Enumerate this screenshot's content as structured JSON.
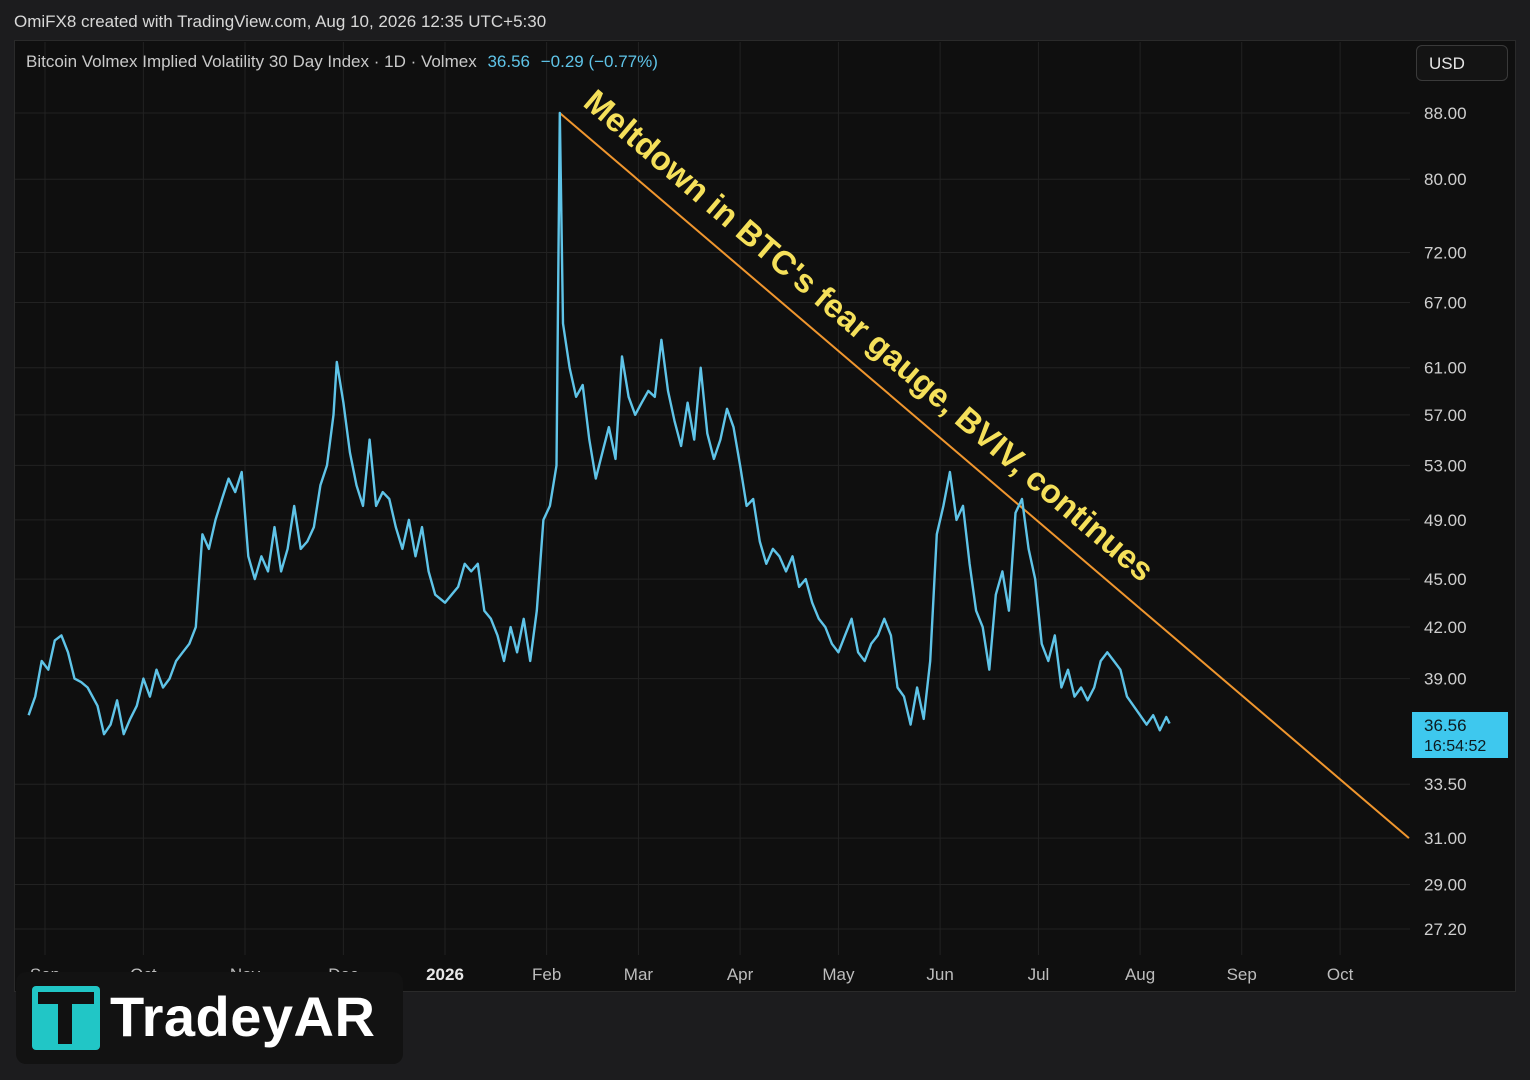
{
  "header": {
    "credit": "OmiFX8 created with TradingView.com, Aug 10, 2026 12:35 UTC+5:30"
  },
  "legend": {
    "symbol": "Bitcoin Volmex Implied Volatility 30 Day Index · 1D · Volmex",
    "last": "36.56",
    "change": "−0.29 (−0.77%)"
  },
  "currency_label": "USD",
  "price_tag": {
    "value": "36.56",
    "countdown": "16:54:52"
  },
  "logo": {
    "text": "TradeyAR"
  },
  "colors": {
    "line": "#5fc4e8",
    "trendline": "#f0962e",
    "annotation": "#f5e05a",
    "background": "#0f0f0f"
  },
  "chart_data": {
    "type": "line",
    "y_scale": "log",
    "annotation": "Meltdown in BTC's fear gauge, BVIV, continues",
    "y_ticks": [
      "88.00",
      "80.00",
      "72.00",
      "67.00",
      "61.00",
      "57.00",
      "53.00",
      "49.00",
      "45.00",
      "42.00",
      "39.00",
      "33.50",
      "31.00",
      "29.00",
      "27.20"
    ],
    "x_ticks": [
      {
        "label": "Sep",
        "date": "2025-09-01"
      },
      {
        "label": "Oct",
        "date": "2025-10-01"
      },
      {
        "label": "Nov",
        "date": "2025-11-01"
      },
      {
        "label": "Dec",
        "date": "2025-12-01"
      },
      {
        "label": "2026",
        "date": "2026-01-01",
        "bold": true
      },
      {
        "label": "Feb",
        "date": "2026-02-01"
      },
      {
        "label": "Mar",
        "date": "2026-03-01"
      },
      {
        "label": "Apr",
        "date": "2026-04-01"
      },
      {
        "label": "May",
        "date": "2026-05-01"
      },
      {
        "label": "Jun",
        "date": "2026-06-01"
      },
      {
        "label": "Jul",
        "date": "2026-07-01"
      },
      {
        "label": "Aug",
        "date": "2026-08-01"
      },
      {
        "label": "Sep",
        "date": "2026-09-01"
      },
      {
        "label": "Oct",
        "date": "2026-10-01"
      }
    ],
    "series": [
      {
        "values": [
          [
            "2025-08-27",
            37.0
          ],
          [
            "2025-08-29",
            38.0
          ],
          [
            "2025-08-31",
            40.0
          ],
          [
            "2025-09-02",
            39.5
          ],
          [
            "2025-09-04",
            41.2
          ],
          [
            "2025-09-06",
            41.5
          ],
          [
            "2025-09-08",
            40.5
          ],
          [
            "2025-09-10",
            39.0
          ],
          [
            "2025-09-12",
            38.8
          ],
          [
            "2025-09-14",
            38.5
          ],
          [
            "2025-09-17",
            37.5
          ],
          [
            "2025-09-19",
            36.0
          ],
          [
            "2025-09-21",
            36.5
          ],
          [
            "2025-09-23",
            37.8
          ],
          [
            "2025-09-25",
            36.0
          ],
          [
            "2025-09-27",
            36.8
          ],
          [
            "2025-09-29",
            37.5
          ],
          [
            "2025-10-01",
            39.0
          ],
          [
            "2025-10-03",
            38.0
          ],
          [
            "2025-10-05",
            39.5
          ],
          [
            "2025-10-07",
            38.5
          ],
          [
            "2025-10-09",
            39.0
          ],
          [
            "2025-10-11",
            40.0
          ],
          [
            "2025-10-13",
            40.5
          ],
          [
            "2025-10-15",
            41.0
          ],
          [
            "2025-10-17",
            42.0
          ],
          [
            "2025-10-19",
            48.0
          ],
          [
            "2025-10-21",
            47.0
          ],
          [
            "2025-10-23",
            49.0
          ],
          [
            "2025-10-25",
            50.5
          ],
          [
            "2025-10-27",
            52.0
          ],
          [
            "2025-10-29",
            51.0
          ],
          [
            "2025-10-31",
            52.5
          ],
          [
            "2025-11-02",
            46.5
          ],
          [
            "2025-11-04",
            45.0
          ],
          [
            "2025-11-06",
            46.5
          ],
          [
            "2025-11-08",
            45.5
          ],
          [
            "2025-11-10",
            48.5
          ],
          [
            "2025-11-12",
            45.5
          ],
          [
            "2025-11-14",
            47.0
          ],
          [
            "2025-11-16",
            50.0
          ],
          [
            "2025-11-18",
            47.0
          ],
          [
            "2025-11-20",
            47.5
          ],
          [
            "2025-11-22",
            48.5
          ],
          [
            "2025-11-24",
            51.5
          ],
          [
            "2025-11-26",
            53.0
          ],
          [
            "2025-11-28",
            57.0
          ],
          [
            "2025-11-29",
            61.5
          ],
          [
            "2025-12-01",
            58.0
          ],
          [
            "2025-12-03",
            54.0
          ],
          [
            "2025-12-05",
            51.5
          ],
          [
            "2025-12-07",
            50.0
          ],
          [
            "2025-12-09",
            55.0
          ],
          [
            "2025-12-11",
            50.0
          ],
          [
            "2025-12-13",
            51.0
          ],
          [
            "2025-12-15",
            50.5
          ],
          [
            "2025-12-17",
            48.5
          ],
          [
            "2025-12-19",
            47.0
          ],
          [
            "2025-12-21",
            49.0
          ],
          [
            "2025-12-23",
            46.5
          ],
          [
            "2025-12-25",
            48.5
          ],
          [
            "2025-12-27",
            45.5
          ],
          [
            "2025-12-29",
            44.0
          ],
          [
            "2026-01-01",
            43.5
          ],
          [
            "2026-01-03",
            44.0
          ],
          [
            "2026-01-05",
            44.5
          ],
          [
            "2026-01-07",
            46.0
          ],
          [
            "2026-01-09",
            45.5
          ],
          [
            "2026-01-11",
            46.0
          ],
          [
            "2026-01-13",
            43.0
          ],
          [
            "2026-01-15",
            42.5
          ],
          [
            "2026-01-17",
            41.5
          ],
          [
            "2026-01-19",
            40.0
          ],
          [
            "2026-01-21",
            42.0
          ],
          [
            "2026-01-23",
            40.5
          ],
          [
            "2026-01-25",
            42.5
          ],
          [
            "2026-01-27",
            40.0
          ],
          [
            "2026-01-29",
            43.0
          ],
          [
            "2026-01-31",
            49.0
          ],
          [
            "2026-02-02",
            50.0
          ],
          [
            "2026-02-04",
            53.0
          ],
          [
            "2026-02-05",
            88.0
          ],
          [
            "2026-02-06",
            65.0
          ],
          [
            "2026-02-08",
            61.0
          ],
          [
            "2026-02-10",
            58.5
          ],
          [
            "2026-02-12",
            59.5
          ],
          [
            "2026-02-14",
            55.0
          ],
          [
            "2026-02-16",
            52.0
          ],
          [
            "2026-02-18",
            54.0
          ],
          [
            "2026-02-20",
            56.0
          ],
          [
            "2026-02-22",
            53.5
          ],
          [
            "2026-02-24",
            62.0
          ],
          [
            "2026-02-26",
            58.5
          ],
          [
            "2026-02-28",
            57.0
          ],
          [
            "2026-03-02",
            58.0
          ],
          [
            "2026-03-04",
            59.0
          ],
          [
            "2026-03-06",
            58.5
          ],
          [
            "2026-03-08",
            63.5
          ],
          [
            "2026-03-10",
            59.0
          ],
          [
            "2026-03-12",
            56.5
          ],
          [
            "2026-03-14",
            54.5
          ],
          [
            "2026-03-16",
            58.0
          ],
          [
            "2026-03-18",
            55.0
          ],
          [
            "2026-03-20",
            61.0
          ],
          [
            "2026-03-22",
            55.5
          ],
          [
            "2026-03-24",
            53.5
          ],
          [
            "2026-03-26",
            55.0
          ],
          [
            "2026-03-28",
            57.5
          ],
          [
            "2026-03-30",
            56.0
          ],
          [
            "2026-04-01",
            53.0
          ],
          [
            "2026-04-03",
            50.0
          ],
          [
            "2026-04-05",
            50.5
          ],
          [
            "2026-04-07",
            47.5
          ],
          [
            "2026-04-09",
            46.0
          ],
          [
            "2026-04-11",
            47.0
          ],
          [
            "2026-04-13",
            46.5
          ],
          [
            "2026-04-15",
            45.5
          ],
          [
            "2026-04-17",
            46.5
          ],
          [
            "2026-04-19",
            44.5
          ],
          [
            "2026-04-21",
            45.0
          ],
          [
            "2026-04-23",
            43.5
          ],
          [
            "2026-04-25",
            42.5
          ],
          [
            "2026-04-27",
            42.0
          ],
          [
            "2026-04-29",
            41.0
          ],
          [
            "2026-05-01",
            40.5
          ],
          [
            "2026-05-03",
            41.5
          ],
          [
            "2026-05-05",
            42.5
          ],
          [
            "2026-05-07",
            40.5
          ],
          [
            "2026-05-09",
            40.0
          ],
          [
            "2026-05-11",
            41.0
          ],
          [
            "2026-05-13",
            41.5
          ],
          [
            "2026-05-15",
            42.5
          ],
          [
            "2026-05-17",
            41.5
          ],
          [
            "2026-05-19",
            38.5
          ],
          [
            "2026-05-21",
            38.0
          ],
          [
            "2026-05-23",
            36.5
          ],
          [
            "2026-05-25",
            38.5
          ],
          [
            "2026-05-27",
            36.8
          ],
          [
            "2026-05-29",
            40.0
          ],
          [
            "2026-05-31",
            48.0
          ],
          [
            "2026-06-02",
            50.0
          ],
          [
            "2026-06-04",
            52.5
          ],
          [
            "2026-06-06",
            49.0
          ],
          [
            "2026-06-08",
            50.0
          ],
          [
            "2026-06-10",
            46.0
          ],
          [
            "2026-06-12",
            43.0
          ],
          [
            "2026-06-14",
            42.0
          ],
          [
            "2026-06-16",
            39.5
          ],
          [
            "2026-06-18",
            44.0
          ],
          [
            "2026-06-20",
            45.5
          ],
          [
            "2026-06-22",
            43.0
          ],
          [
            "2026-06-24",
            49.5
          ],
          [
            "2026-06-26",
            50.5
          ],
          [
            "2026-06-28",
            47.0
          ],
          [
            "2026-06-30",
            45.0
          ],
          [
            "2026-07-02",
            41.0
          ],
          [
            "2026-07-04",
            40.0
          ],
          [
            "2026-07-06",
            41.5
          ],
          [
            "2026-07-08",
            38.5
          ],
          [
            "2026-07-10",
            39.5
          ],
          [
            "2026-07-12",
            38.0
          ],
          [
            "2026-07-14",
            38.5
          ],
          [
            "2026-07-16",
            37.8
          ],
          [
            "2026-07-18",
            38.5
          ],
          [
            "2026-07-20",
            40.0
          ],
          [
            "2026-07-22",
            40.5
          ],
          [
            "2026-07-24",
            40.0
          ],
          [
            "2026-07-26",
            39.5
          ],
          [
            "2026-07-28",
            38.0
          ],
          [
            "2026-07-30",
            37.5
          ],
          [
            "2026-08-01",
            37.0
          ],
          [
            "2026-08-03",
            36.5
          ],
          [
            "2026-08-05",
            37.0
          ],
          [
            "2026-08-07",
            36.2
          ],
          [
            "2026-08-09",
            36.9
          ],
          [
            "2026-08-10",
            36.56
          ]
        ]
      }
    ],
    "trendline": {
      "from": [
        "2026-02-05",
        88.0
      ],
      "to": [
        "2026-10-22",
        31.0
      ]
    }
  }
}
